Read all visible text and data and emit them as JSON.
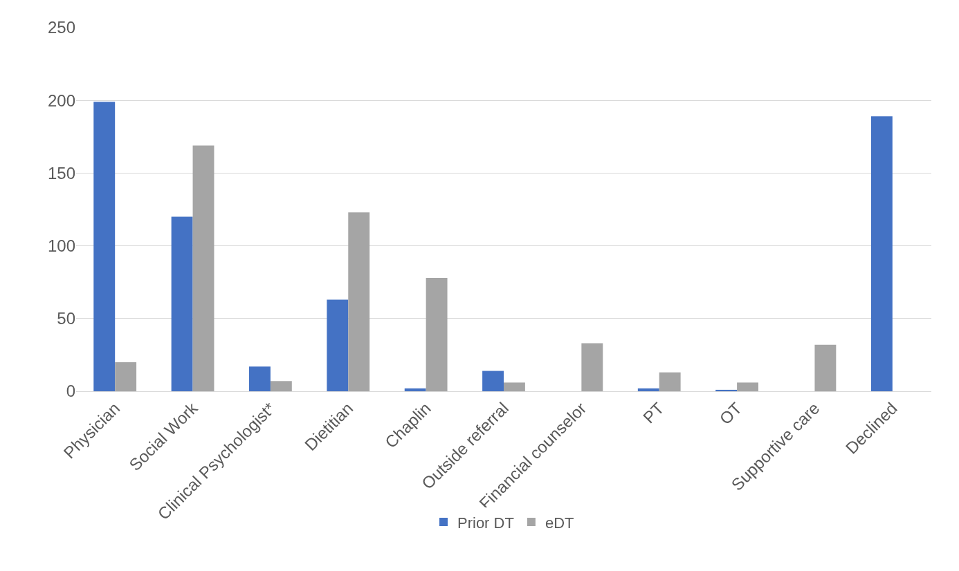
{
  "chart_data": {
    "type": "bar",
    "categories": [
      "Physician",
      "Social Work",
      "Clinical Psychologist*",
      "Dietitian",
      "Chaplin",
      "Outside referral",
      "Financial counselor",
      "PT",
      "OT",
      "Supportive care",
      "Declined"
    ],
    "series": [
      {
        "name": "Prior DT",
        "color": "#4472c4",
        "values": [
          199,
          120,
          17,
          63,
          2,
          14,
          0,
          2,
          1,
          0,
          189
        ]
      },
      {
        "name": "eDT",
        "color": "#a5a5a5",
        "values": [
          20,
          169,
          7,
          123,
          78,
          6,
          33,
          13,
          6,
          32,
          0
        ]
      }
    ],
    "ylim": [
      0,
      250
    ],
    "yticks": [
      0,
      50,
      100,
      150,
      200,
      250
    ],
    "grid": "y",
    "legend": "bottom"
  }
}
